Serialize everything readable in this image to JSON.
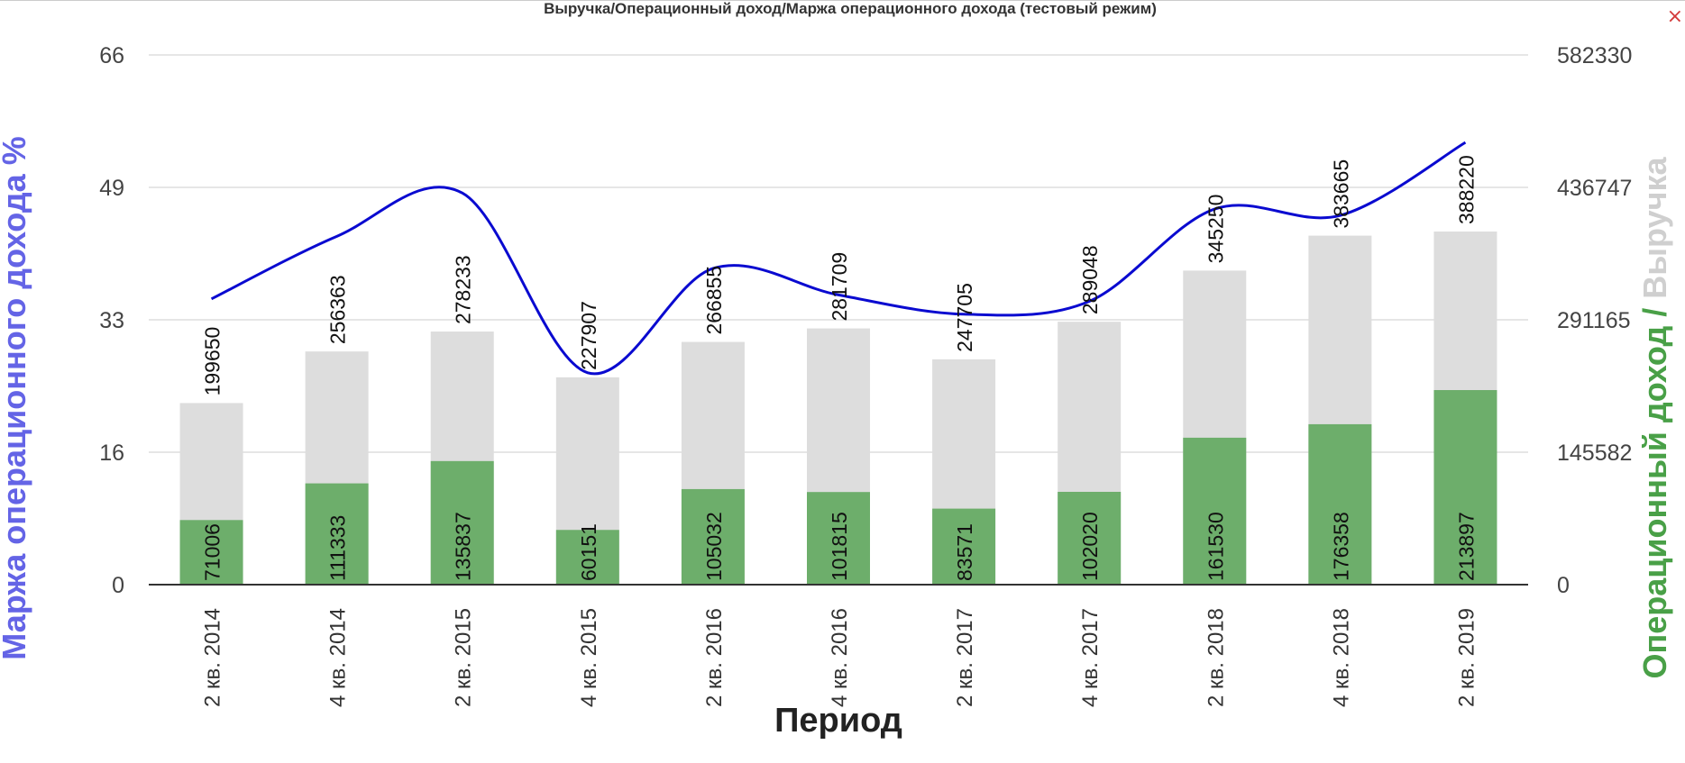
{
  "window": {
    "title": "Выручка/Операционный доход/Маржа операционного дохода (тестовый режим)",
    "close_glyph": "×"
  },
  "colors": {
    "revenue": "#dddddd",
    "operating_income": "#6dae6b",
    "margin_line": "#0a0ad0",
    "left_axis_title": "#6464e6",
    "right_axis_title_income": "#49a047",
    "right_axis_title_revenue": "#cfcfcf",
    "grid": "#cccccc",
    "axis": "#333333"
  },
  "chart_data": {
    "type": "bar",
    "categories": [
      "2 кв. 2014",
      "4 кв. 2014",
      "2 кв. 2015",
      "4 кв. 2015",
      "2 кв. 2016",
      "4 кв. 2016",
      "2 кв. 2017",
      "4 кв. 2017",
      "2 кв. 2018",
      "4 кв. 2018",
      "2 кв. 2019"
    ],
    "series": [
      {
        "name": "Выручка",
        "type": "bar",
        "axis": "right",
        "values": [
          199650,
          256363,
          278233,
          227907,
          266855,
          281709,
          247705,
          289048,
          345250,
          383665,
          388220
        ]
      },
      {
        "name": "Операционный доход",
        "type": "bar",
        "axis": "right",
        "values": [
          71006,
          111333,
          135837,
          60151,
          105032,
          101815,
          83571,
          102020,
          161530,
          176358,
          213897
        ]
      },
      {
        "name": "Маржа операционного дохода %",
        "type": "line",
        "axis": "left",
        "values": [
          35.6,
          43.4,
          48.8,
          26.4,
          39.4,
          36.1,
          33.7,
          35.3,
          46.8,
          46.0,
          55.1
        ]
      }
    ],
    "xlabel": "Период",
    "ylabel_left": "Маржа операционного дохода %",
    "ylabel_right_part1": "Операционный доход / ",
    "ylabel_right_part2": "Выручка",
    "left_ticks": [
      "0",
      "16",
      "33",
      "49",
      "66"
    ],
    "right_ticks": [
      "0",
      "145582",
      "291165",
      "436747",
      "582330"
    ],
    "ylim_left": [
      0,
      66
    ],
    "ylim_right": [
      0,
      582330
    ],
    "grid": true
  }
}
